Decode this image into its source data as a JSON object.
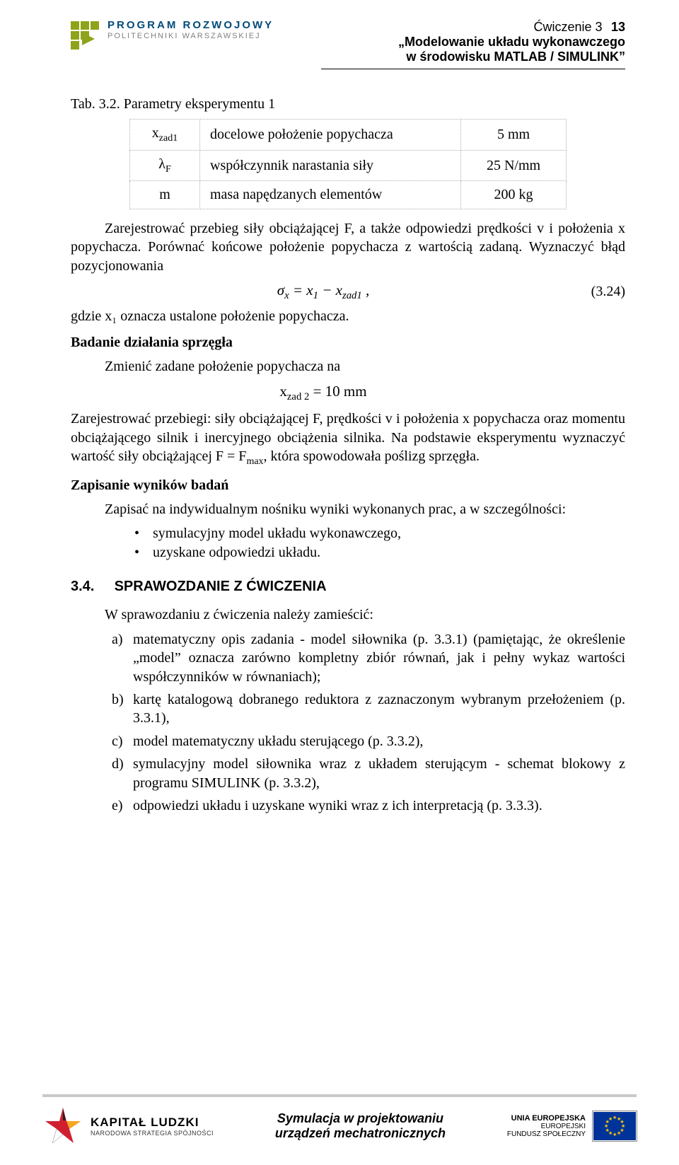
{
  "header": {
    "logo_line1": "PROGRAM ROZWOJOWY",
    "logo_line2": "POLITECHNIKI WARSZAWSKIEJ",
    "exercise": "Ćwiczenie 3",
    "page_no": "13",
    "title_l1": "„Modelowanie układu wykonawczego",
    "title_l2": "w środowisku MATLAB / SIMULINK”"
  },
  "tab_caption": "Tab. 3.2.  Parametry eksperymentu 1",
  "table": {
    "rows": [
      {
        "sym_html": "x<sub>zad1</sub>",
        "desc": "docelowe położenie popychacza",
        "val": "5 mm"
      },
      {
        "sym_html": "λ<sub>F</sub>",
        "desc": "współczynnik narastania siły",
        "val": "25 N/mm"
      },
      {
        "sym_html": "m",
        "desc": "masa napędzanych elementów",
        "val": "200 kg"
      }
    ]
  },
  "p_zarej": "Zarejestrować przebieg siły obciążającej F, a także odpowiedzi prędkości v i położenia x popychacza. Porównać końcowe położenie popychacza z wartością zadaną. Wyznaczyć błąd pozycjonowania",
  "eq1_math": "σ<sub>x</sub> = x<sub>1</sub> − x<sub>zad1</sub> ,",
  "eq1_num": "(3.24)",
  "p_gdzie": "gdzie x₁ oznacza ustalone położenie popychacza.",
  "h_badanie": "Badanie działania sprzęgła",
  "p_zmienic": "Zmienić zadane położenie popychacza na",
  "eq2_math": "x<sub>zad 2</sub> = 10 mm",
  "p_zarej2": "Zarejestrować przebiegi: siły obciążającej F, prędkości v i położenia x popychacza oraz momentu obciążającego silnik i inercyjnego obciążenia silnika. Na podstawie eksperymentu wyznaczyć wartość siły obciążającej F = F",
  "p_zarej2_tail": ", która spowodowała poślizg sprzęgła.",
  "h_zapisanie": "Zapisanie wyników badań",
  "p_zapisac": "Zapisać na indywidualnym nośniku wyniki wykonanych prac, a w szczególności:",
  "bul1": "symulacyjny model układu wykonawczego,",
  "bul2": "uzyskane odpowiedzi układu.",
  "h34_num": "3.4.",
  "h34_txt": "SPRAWOZDANIE Z ĆWICZENIA",
  "p_wspraw": "W sprawozdaniu z ćwiczenia należy zamieścić:",
  "items": {
    "a": "matematyczny opis zadania - model siłownika (p. 3.3.1) (pamiętając, że określenie „model” oznacza zarówno kompletny zbiór równań, jak i pełny wykaz wartości współczynników w równaniach);",
    "b": "kartę katalogową dobranego reduktora z zaznaczonym wybranym przełożeniem (p. 3.3.1),",
    "c": "model matematyczny układu sterującego (p. 3.3.2),",
    "d": "symulacyjny model siłownika wraz z układem sterującym - schemat blokowy z programu SIMULINK (p. 3.3.2),",
    "e": "odpowiedzi układu i uzyskane wyniki wraz z ich interpretacją (p. 3.3.3)."
  },
  "footer": {
    "kl1": "KAPITAŁ LUDZKI",
    "kl2": "NARODOWA STRATEGIA SPÓJNOŚCI",
    "c1": "Symulacja w projektowaniu",
    "c2": "urządzeń mechatronicznych",
    "u1": "UNIA EUROPEJSKA",
    "u2": "EUROPEJSKI",
    "u3": "FUNDUSZ SPOŁECZNY"
  },
  "colors": {
    "logo_green": "#8fa31a",
    "logo_blue": "#004b7a",
    "eu_blue": "#003399",
    "eu_yellow": "#ffcc00"
  }
}
